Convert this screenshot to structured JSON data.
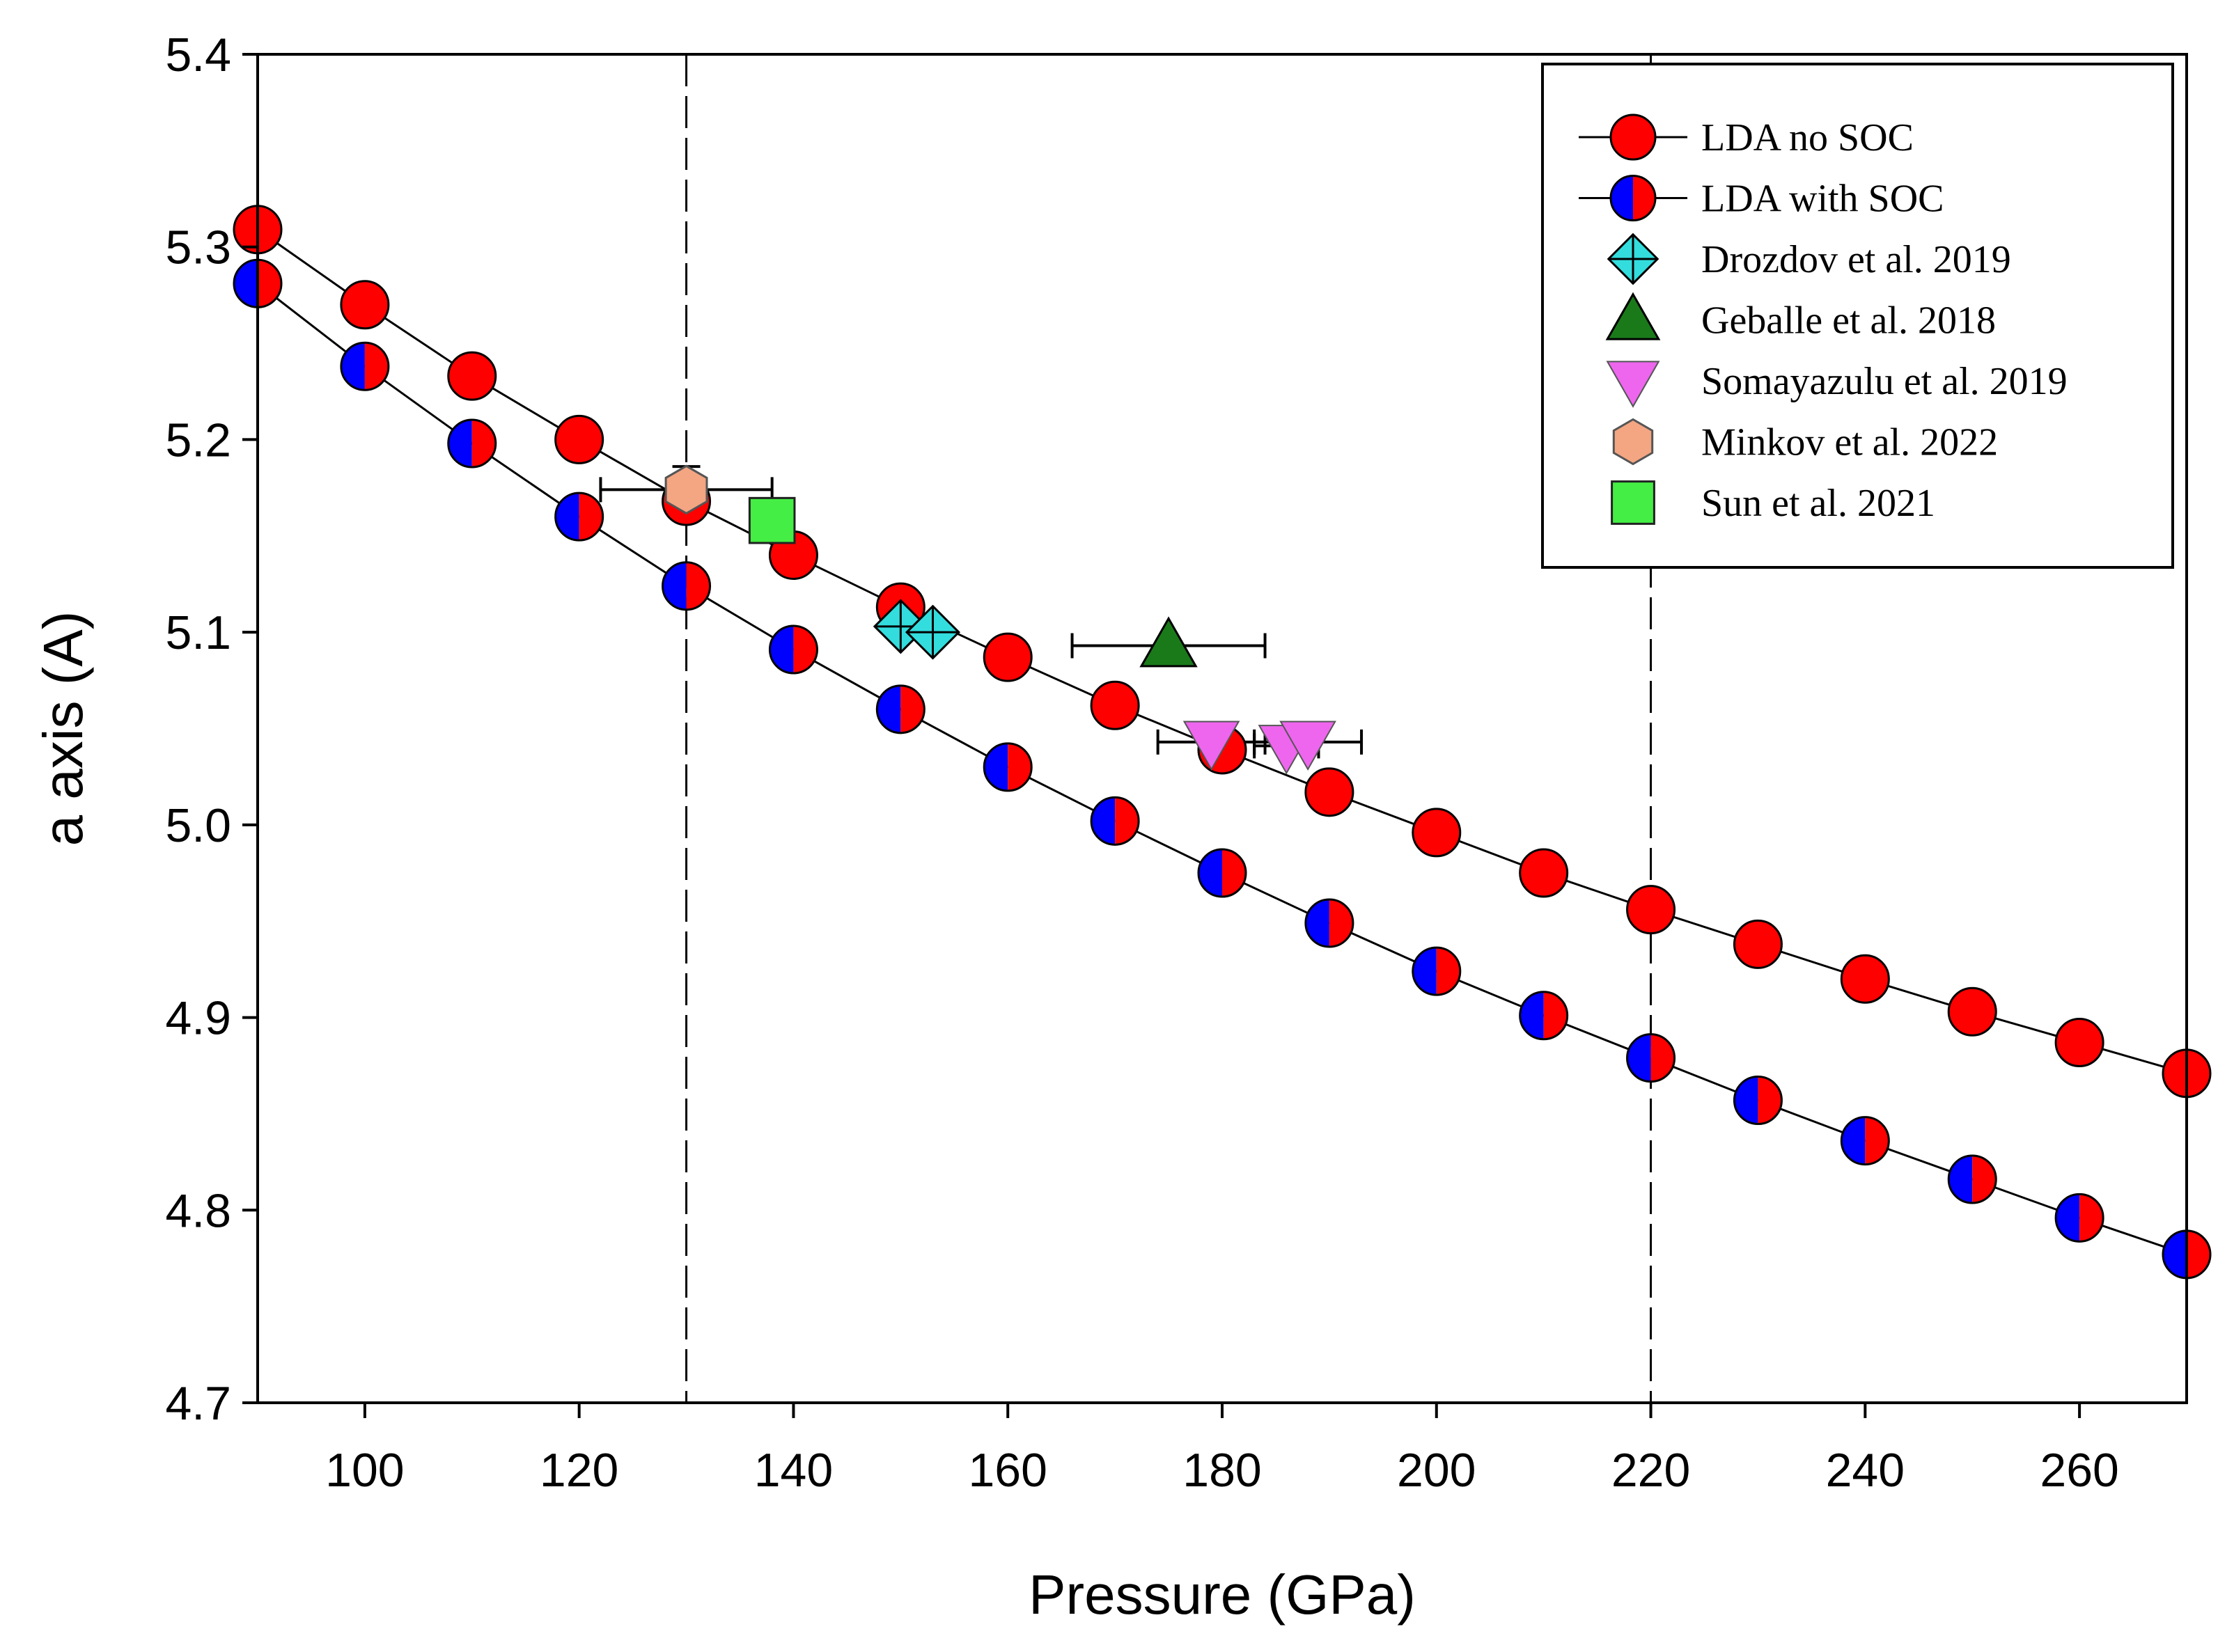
{
  "chart_data": {
    "type": "scatter",
    "xlabel": "Pressure (GPa)",
    "ylabel": "a axis (A)",
    "xlim": [
      90,
      270
    ],
    "ylim": [
      4.7,
      5.4
    ],
    "xticks": [
      "100",
      "120",
      "140",
      "160",
      "180",
      "200",
      "220",
      "240",
      "260"
    ],
    "xtick_values": [
      100,
      120,
      140,
      160,
      180,
      200,
      220,
      240,
      260
    ],
    "yticks": [
      "4.7",
      "4.8",
      "4.9",
      "5.0",
      "5.1",
      "5.2",
      "5.3",
      "5.4"
    ],
    "ytick_values": [
      4.7,
      4.8,
      4.9,
      5.0,
      5.1,
      5.2,
      5.3,
      5.4
    ],
    "vlines": [
      130,
      220
    ],
    "legend_position": "top-right",
    "series": [
      {
        "name": "LDA no SOC",
        "marker": "circle",
        "color": "#ff0000",
        "line": true,
        "x": [
          90,
          100,
          110,
          120,
          130,
          140,
          150,
          160,
          170,
          180,
          190,
          200,
          210,
          220,
          230,
          240,
          250,
          260,
          270
        ],
        "y": [
          5.309,
          5.27,
          5.233,
          5.2,
          5.168,
          5.14,
          5.113,
          5.087,
          5.062,
          5.039,
          5.017,
          4.996,
          4.975,
          4.956,
          4.938,
          4.92,
          4.903,
          4.887,
          4.871
        ]
      },
      {
        "name": "LDA with SOC",
        "marker": "half-circle",
        "color": "#0000ff",
        "color2": "#ff0000",
        "line": true,
        "x": [
          90,
          100,
          110,
          120,
          130,
          140,
          150,
          160,
          170,
          180,
          190,
          200,
          210,
          220,
          230,
          240,
          250,
          260,
          270
        ],
        "y": [
          5.281,
          5.238,
          5.198,
          5.16,
          5.124,
          5.091,
          5.06,
          5.03,
          5.002,
          4.975,
          4.949,
          4.924,
          4.901,
          4.879,
          4.857,
          4.836,
          4.816,
          4.796,
          4.777
        ]
      },
      {
        "name": "Drozdov et al. 2019",
        "marker": "diamond-cross",
        "color": "#33dddd",
        "line": false,
        "x": [
          150,
          153
        ],
        "y": [
          5.103,
          5.1
        ]
      },
      {
        "name": "Geballe et al. 2018",
        "marker": "triangle-up",
        "color": "#1a7a1a",
        "line": false,
        "x": [
          175
        ],
        "y": [
          5.093
        ],
        "xerr": [
          9
        ]
      },
      {
        "name": "Somayazulu et al. 2019",
        "marker": "triangle-down",
        "color": "#ee66ee",
        "line": false,
        "x": [
          179,
          186,
          188
        ],
        "y": [
          5.043,
          5.041,
          5.043
        ],
        "xerr": [
          5,
          3,
          5
        ]
      },
      {
        "name": "Minkov et al. 2022",
        "marker": "hexagon",
        "color": "#f4a582",
        "line": false,
        "x": [
          130
        ],
        "y": [
          5.174
        ],
        "xerr": [
          8
        ],
        "yerr": [
          0.012
        ]
      },
      {
        "name": "Sun et al. 2021",
        "marker": "square",
        "color": "#44ee44",
        "line": false,
        "x": [
          138
        ],
        "y": [
          5.158
        ]
      }
    ]
  }
}
